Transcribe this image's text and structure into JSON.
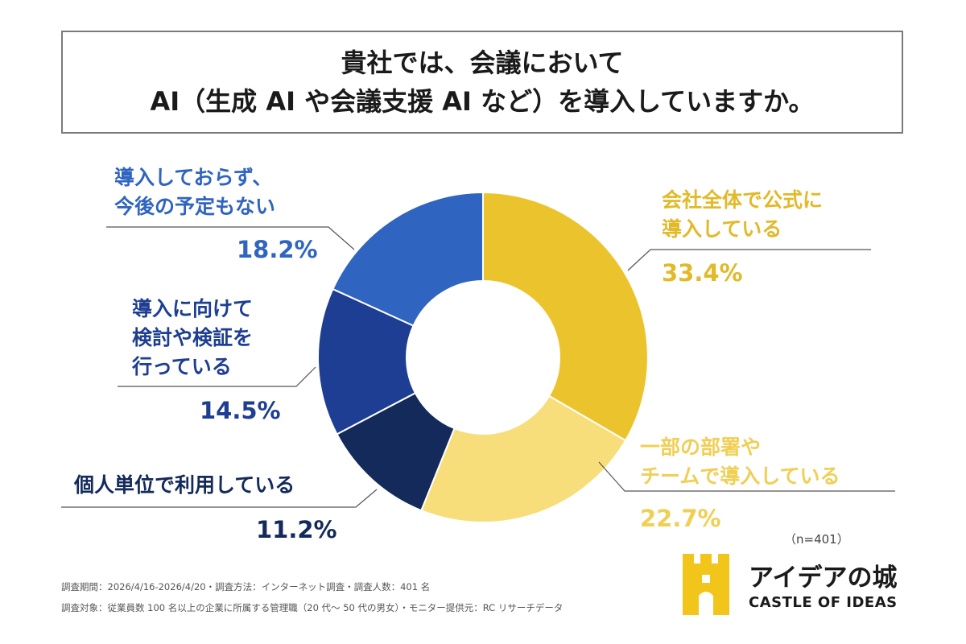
{
  "title": {
    "line1": "貴社では、会議において",
    "line2": "AI（生成 AI や会議支援 AI など）を導入していますか。"
  },
  "chart_data": {
    "type": "pie",
    "donut": true,
    "categories": [
      "会社全体で公式に導入している",
      "一部の部署やチームで導入している",
      "個人単位で利用している",
      "導入に向けて検討や検証を行っている",
      "導入しておらず、今後の予定もない"
    ],
    "values": [
      33.4,
      22.7,
      11.2,
      14.5,
      18.2
    ],
    "value_labels": [
      "33.4%",
      "22.7%",
      "11.2%",
      "14.5%",
      "18.2%"
    ],
    "colors": [
      "#EBC42D",
      "#F7DE7A",
      "#132A5B",
      "#1D3E92",
      "#2F64C0"
    ],
    "label_colors": [
      "#E2B928",
      "#F0CF55",
      "#132A5B",
      "#1D3E92",
      "#2F64C0"
    ],
    "labels": [
      [
        "会社全体で公式に",
        "導入している"
      ],
      [
        "一部の部署や",
        "チームで導入している"
      ],
      [
        "個人単位で利用している"
      ],
      [
        "導入に向けて",
        "検討や検証を",
        "行っている"
      ],
      [
        "導入しておらず、",
        "今後の予定もない"
      ]
    ]
  },
  "note": "（n=401）",
  "footer": {
    "line1": "調査期間：2026/4/16-2026/4/20・調査方法：インターネット調査・調査人数：401 名",
    "line2": "調査対象：従業員数 100 名以上の企業に所属する管理職（20 代〜 50 代の男女）・モニター提供元：RC リサーチデータ"
  },
  "brand": {
    "name_jp": "アイデアの城",
    "name_en": "CASTLE OF IDEAS",
    "logo_icon": "castle-icon",
    "logo_color": "#F2C51B"
  }
}
